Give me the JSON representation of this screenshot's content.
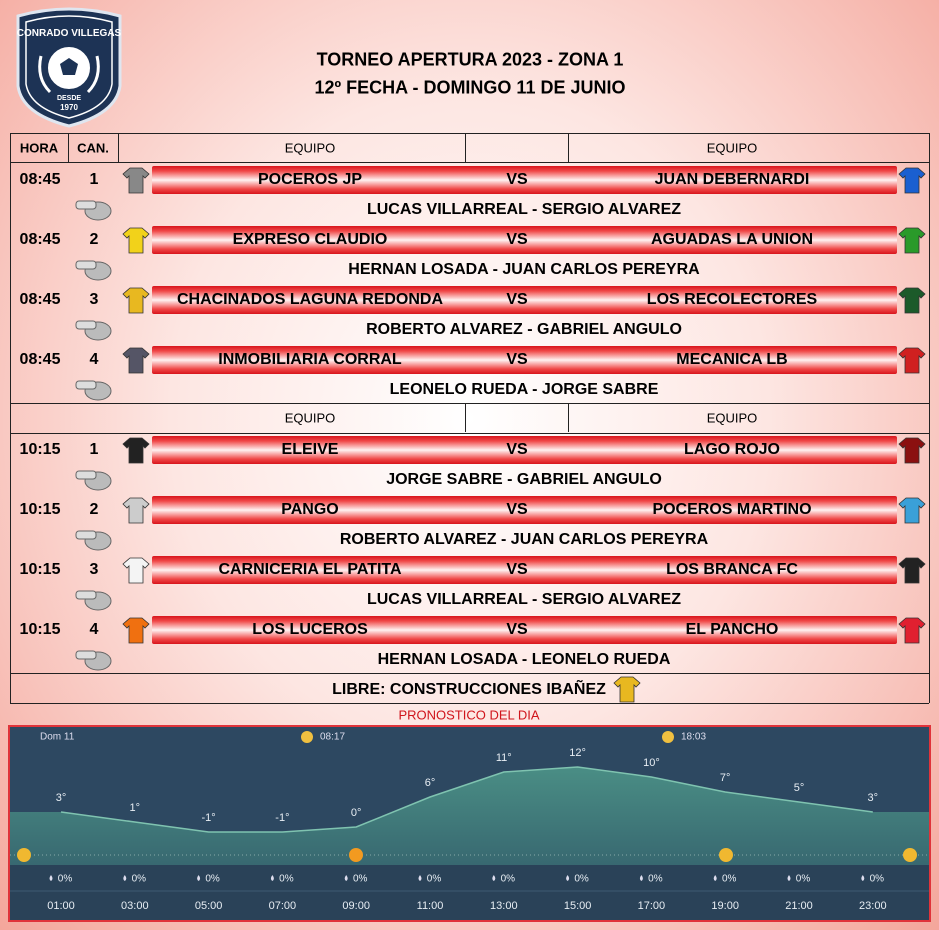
{
  "header": {
    "logo": {
      "name": "CONRADO VILLEGAS",
      "since": "DESDE",
      "year": "1970"
    },
    "title": "TORNEO APERTURA 2023 - ZONA 1",
    "subtitle": "12º FECHA - DOMINGO 11 DE JUNIO"
  },
  "table": {
    "blocks": [
      {
        "header": {
          "hora": "HORA",
          "can": "CAN.",
          "home": "EQUIPO",
          "away": "EQUIPO"
        },
        "matches": [
          {
            "time": "08:45",
            "field": 1,
            "home": "POCEROS JP",
            "vs": "VS",
            "away": "JUAN DEBERNARDI",
            "referees": "LUCAS VILLARREAL - SERGIO ALVAREZ"
          },
          {
            "time": "08:45",
            "field": 2,
            "home": "EXPRESO CLAUDIO",
            "vs": "VS",
            "away": "AGUADAS LA UNION",
            "referees": "HERNAN LOSADA - JUAN CARLOS PEREYRA"
          },
          {
            "time": "08:45",
            "field": 3,
            "home": "CHACINADOS LAGUNA REDONDA",
            "vs": "VS",
            "away": "LOS RECOLECTORES",
            "referees": "ROBERTO ALVAREZ - GABRIEL ANGULO"
          },
          {
            "time": "08:45",
            "field": 4,
            "home": "INMOBILIARIA CORRAL",
            "vs": "VS",
            "away": "MECANICA LB",
            "referees": "LEONELO RUEDA - JORGE SABRE"
          }
        ]
      },
      {
        "header": {
          "home": "EQUIPO",
          "away": "EQUIPO"
        },
        "matches": [
          {
            "time": "10:15",
            "field": 1,
            "home": "ELEIVE",
            "vs": "VS",
            "away": "LAGO ROJO",
            "referees": "JORGE SABRE - GABRIEL ANGULO"
          },
          {
            "time": "10:15",
            "field": 2,
            "home": "PANGO",
            "vs": "VS",
            "away": "POCEROS MARTINO",
            "referees": "ROBERTO ALVAREZ - JUAN CARLOS PEREYRA"
          },
          {
            "time": "10:15",
            "field": 3,
            "home": "CARNICERIA EL PATITA",
            "vs": "VS",
            "away": "LOS BRANCA FC",
            "referees": "LUCAS VILLARREAL - SERGIO ALVAREZ"
          },
          {
            "time": "10:15",
            "field": 4,
            "home": "LOS LUCEROS",
            "vs": "VS",
            "away": "EL PANCHO",
            "referees": "HERNAN LOSADA - LEONELO RUEDA"
          }
        ]
      }
    ],
    "libre": "LIBRE: CONSTRUCCIONES IBAÑEZ"
  },
  "forecast": {
    "title": "PRONOSTICO DEL DIA",
    "day": "Dom 11",
    "sunrise": "08:17",
    "sunset": "18:03",
    "hours": [
      "01:00",
      "03:00",
      "05:00",
      "07:00",
      "09:00",
      "11:00",
      "13:00",
      "15:00",
      "17:00",
      "19:00",
      "21:00",
      "23:00"
    ],
    "temps": [
      3,
      1,
      -1,
      -1,
      0,
      6,
      11,
      12,
      10,
      7,
      5,
      3
    ],
    "temp_labels": [
      "3°",
      "1°",
      "-1°",
      "-1°",
      "0°",
      "6°",
      "11°",
      "12°",
      "10°",
      "7°",
      "5°",
      "3°"
    ],
    "rain": [
      "0%",
      "0%",
      "0%",
      "0%",
      "0%",
      "0%",
      "0%",
      "0%",
      "0%",
      "0%",
      "0%",
      "0%"
    ]
  }
}
